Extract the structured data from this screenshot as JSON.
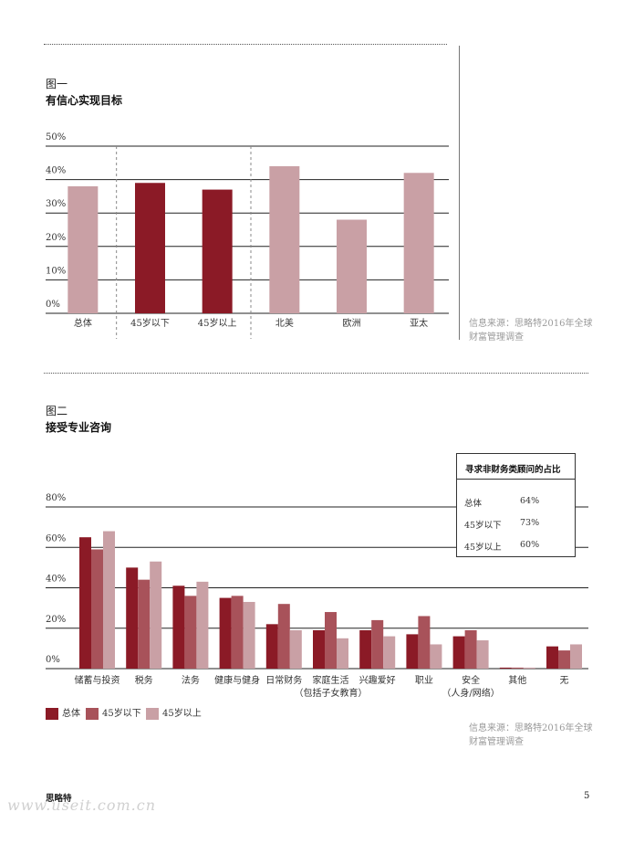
{
  "figure1": {
    "label": "图一",
    "title": "有信心实现目标",
    "source": "信息来源：思略特2016年全球财富管理调查"
  },
  "figure2": {
    "label": "图二",
    "title": "接受专业咨询",
    "source": "信息来源：思略特2016年全球财富管理调查",
    "inset": {
      "title": "寻求非财务类顾问的占比",
      "rows": [
        {
          "label": "总体",
          "value": "64%"
        },
        {
          "label": "45岁以下",
          "value": "73%"
        },
        {
          "label": "45岁以上",
          "value": "60%"
        }
      ]
    },
    "legend": [
      "总体",
      "45岁以下",
      "45岁以上"
    ]
  },
  "footer": {
    "brand": "思略特",
    "page": "5"
  },
  "watermark": "www.useit.com.cn",
  "colors": {
    "dark": "#8b1a26",
    "medium": "#a8525a",
    "light": "#c9a0a5"
  },
  "chart_data": [
    {
      "type": "bar",
      "title": "有信心实现目标",
      "categories": [
        "总体",
        "45岁以下",
        "45岁以上",
        "北美",
        "欧洲",
        "亚太"
      ],
      "values": [
        38,
        39,
        37,
        44,
        28,
        42
      ],
      "bar_colors": [
        "#c9a0a5",
        "#8b1a26",
        "#8b1a26",
        "#c9a0a5",
        "#c9a0a5",
        "#c9a0a5"
      ],
      "yticks": [
        "0%",
        "10%",
        "20%",
        "30%",
        "40%",
        "50%"
      ],
      "ylim": [
        0,
        50
      ],
      "grid": true
    },
    {
      "type": "bar",
      "title": "接受专业咨询",
      "categories": [
        [
          "储蓄与投资"
        ],
        [
          "税务"
        ],
        [
          "法务"
        ],
        [
          "健康与健身"
        ],
        [
          "日常财务"
        ],
        [
          "家庭生活",
          "（包括子女教育）"
        ],
        [
          "兴趣爱好"
        ],
        [
          "职业"
        ],
        [
          "安全",
          "（人身/网络）"
        ],
        [
          "其他"
        ],
        [
          "无"
        ]
      ],
      "series": [
        {
          "name": "总体",
          "color": "#8b1a26",
          "values": [
            65,
            50,
            41,
            35,
            22,
            19,
            19,
            17,
            16,
            0.5,
            11
          ]
        },
        {
          "name": "45岁以下",
          "color": "#a8525a",
          "values": [
            59,
            44,
            36,
            36,
            32,
            28,
            24,
            26,
            19,
            0.5,
            9
          ]
        },
        {
          "name": "45岁以上",
          "color": "#c9a0a5",
          "values": [
            68,
            53,
            43,
            33,
            19,
            15,
            16,
            12,
            14,
            0.5,
            12
          ]
        }
      ],
      "yticks": [
        "0%",
        "20%",
        "40%",
        "60%",
        "80%"
      ],
      "ylim": [
        0,
        80
      ],
      "grid": true,
      "legend": "bottom-left"
    }
  ]
}
